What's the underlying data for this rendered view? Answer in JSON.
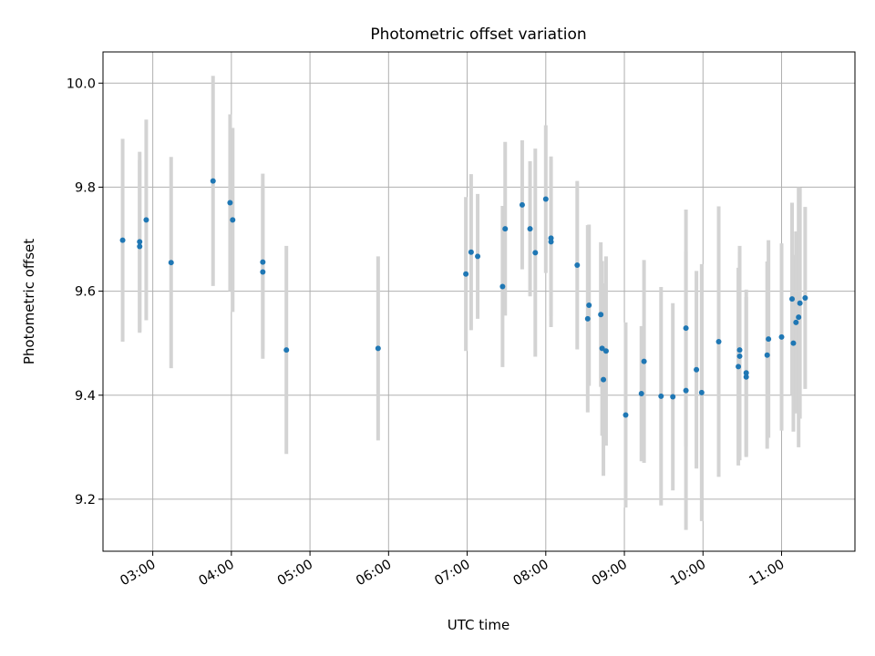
{
  "chart_data": {
    "type": "scatter",
    "title": "Photometric offset variation",
    "xlabel": "UTC time",
    "ylabel": "Photometric offset",
    "xlim": [
      "02:22",
      "11:56"
    ],
    "ylim": [
      9.1,
      10.06
    ],
    "grid": true,
    "x_ticks": [
      "03:00",
      "04:00",
      "05:00",
      "06:00",
      "07:00",
      "08:00",
      "09:00",
      "10:00",
      "11:00"
    ],
    "y_ticks": [
      9.2,
      9.4,
      9.6,
      9.8,
      10.0
    ],
    "y_tick_labels": [
      "9.2",
      "9.4",
      "9.6",
      "9.8",
      "10.0"
    ],
    "colors": {
      "point": "#1f77b4",
      "errorbar": "#d3d3d3",
      "grid": "#b0b0b0"
    },
    "series": [
      {
        "x": [
          "02:37",
          "02:50",
          "02:50",
          "02:55",
          "03:14",
          "03:46",
          "03:59",
          "04:01",
          "04:24",
          "04:24",
          "04:42",
          "05:52",
          "06:59",
          "07:03",
          "07:08",
          "07:27",
          "07:29",
          "07:42",
          "07:48",
          "07:52",
          "08:00",
          "08:04",
          "08:04",
          "08:24",
          "08:32",
          "08:33",
          "08:42",
          "08:43",
          "08:44",
          "08:46",
          "09:01",
          "09:13",
          "09:15",
          "09:28",
          "09:37",
          "09:47",
          "09:47",
          "09:55",
          "09:59",
          "10:12",
          "10:27",
          "10:28",
          "10:28",
          "10:33",
          "10:33",
          "10:49",
          "10:50",
          "11:00",
          "11:08",
          "11:09",
          "11:11",
          "11:13",
          "11:14",
          "11:18"
        ],
        "y": [
          9.698,
          9.695,
          9.686,
          9.737,
          9.655,
          9.812,
          9.77,
          9.737,
          9.656,
          9.637,
          9.487,
          9.49,
          9.633,
          9.675,
          9.667,
          9.609,
          9.72,
          9.766,
          9.72,
          9.674,
          9.777,
          9.702,
          9.695,
          9.65,
          9.547,
          9.573,
          9.555,
          9.49,
          9.43,
          9.485,
          9.362,
          9.403,
          9.465,
          9.398,
          9.397,
          9.529,
          9.409,
          9.449,
          9.405,
          9.503,
          9.455,
          9.487,
          9.475,
          9.443,
          9.435,
          9.477,
          9.508,
          9.512,
          9.585,
          9.5,
          9.54,
          9.55,
          9.577,
          9.587
        ],
        "err": [
          0.195,
          0.173,
          0.166,
          0.193,
          0.203,
          0.202,
          0.17,
          0.177,
          0.17,
          0.167,
          0.2,
          0.177,
          0.148,
          0.15,
          0.12,
          0.155,
          0.167,
          0.124,
          0.13,
          0.2,
          0.142,
          0.15,
          0.164,
          0.162,
          0.18,
          0.155,
          0.139,
          0.168,
          0.185,
          0.182,
          0.178,
          0.13,
          0.195,
          0.21,
          0.18,
          0.228,
          0.268,
          0.19,
          0.247,
          0.26,
          0.19,
          0.2,
          0.2,
          0.16,
          0.154,
          0.18,
          0.19,
          0.18,
          0.185,
          0.17,
          0.175,
          0.25,
          0.222,
          0.175
        ]
      }
    ]
  }
}
